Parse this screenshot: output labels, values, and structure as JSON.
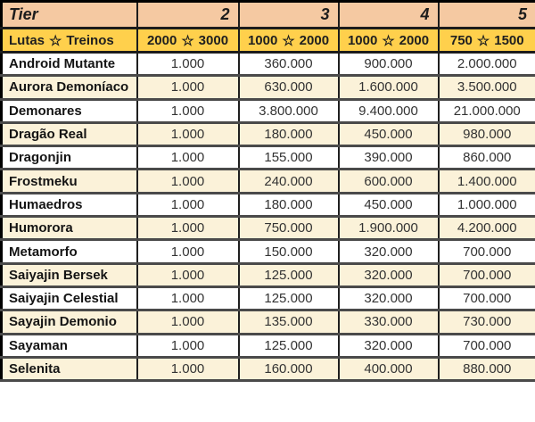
{
  "icons": {
    "star_glyph": "☆"
  },
  "colors": {
    "tier_header_bg": "#f5c9a2",
    "stats_header_bg": "#ffd04c",
    "row_alt_bg": "#fbf2d9",
    "row_bg": "#ffffff",
    "border_dark": "#1c1c1c",
    "border_gray": "#4a4a4a"
  },
  "chart_data": {
    "type": "table",
    "header": {
      "tier_label": "Tier",
      "tier_columns": [
        "2",
        "3",
        "4",
        "5"
      ]
    },
    "subheader": {
      "row_label": {
        "left": "Lutas",
        "right": "Treinos"
      },
      "columns": [
        {
          "left": "2000",
          "right": "3000"
        },
        {
          "left": "1000",
          "right": "2000"
        },
        {
          "left": "1000",
          "right": "2000"
        },
        {
          "left": "750",
          "right": "1500"
        }
      ]
    },
    "rows": [
      {
        "name": "Android Mutante",
        "values": [
          "1.000",
          "360.000",
          "900.000",
          "2.000.000"
        ]
      },
      {
        "name": "Aurora Demoníaco",
        "values": [
          "1.000",
          "630.000",
          "1.600.000",
          "3.500.000"
        ]
      },
      {
        "name": "Demonares",
        "values": [
          "1.000",
          "3.800.000",
          "9.400.000",
          "21.000.000"
        ]
      },
      {
        "name": "Dragão Real",
        "values": [
          "1.000",
          "180.000",
          "450.000",
          "980.000"
        ]
      },
      {
        "name": "Dragonjin",
        "values": [
          "1.000",
          "155.000",
          "390.000",
          "860.000"
        ]
      },
      {
        "name": "Frostmeku",
        "values": [
          "1.000",
          "240.000",
          "600.000",
          "1.400.000"
        ]
      },
      {
        "name": "Humaedros",
        "values": [
          "1.000",
          "180.000",
          "450.000",
          "1.000.000"
        ]
      },
      {
        "name": "Humorora",
        "values": [
          "1.000",
          "750.000",
          "1.900.000",
          "4.200.000"
        ]
      },
      {
        "name": "Metamorfo",
        "values": [
          "1.000",
          "150.000",
          "320.000",
          "700.000"
        ]
      },
      {
        "name": "Saiyajin Bersek",
        "values": [
          "1.000",
          "125.000",
          "320.000",
          "700.000"
        ]
      },
      {
        "name": "Saiyajin Celestial",
        "values": [
          "1.000",
          "125.000",
          "320.000",
          "700.000"
        ]
      },
      {
        "name": "Sayajin Demonio",
        "values": [
          "1.000",
          "135.000",
          "330.000",
          "730.000"
        ]
      },
      {
        "name": "Sayaman",
        "values": [
          "1.000",
          "125.000",
          "320.000",
          "700.000"
        ]
      },
      {
        "name": "Selenita",
        "values": [
          "1.000",
          "160.000",
          "400.000",
          "880.000"
        ]
      }
    ]
  }
}
